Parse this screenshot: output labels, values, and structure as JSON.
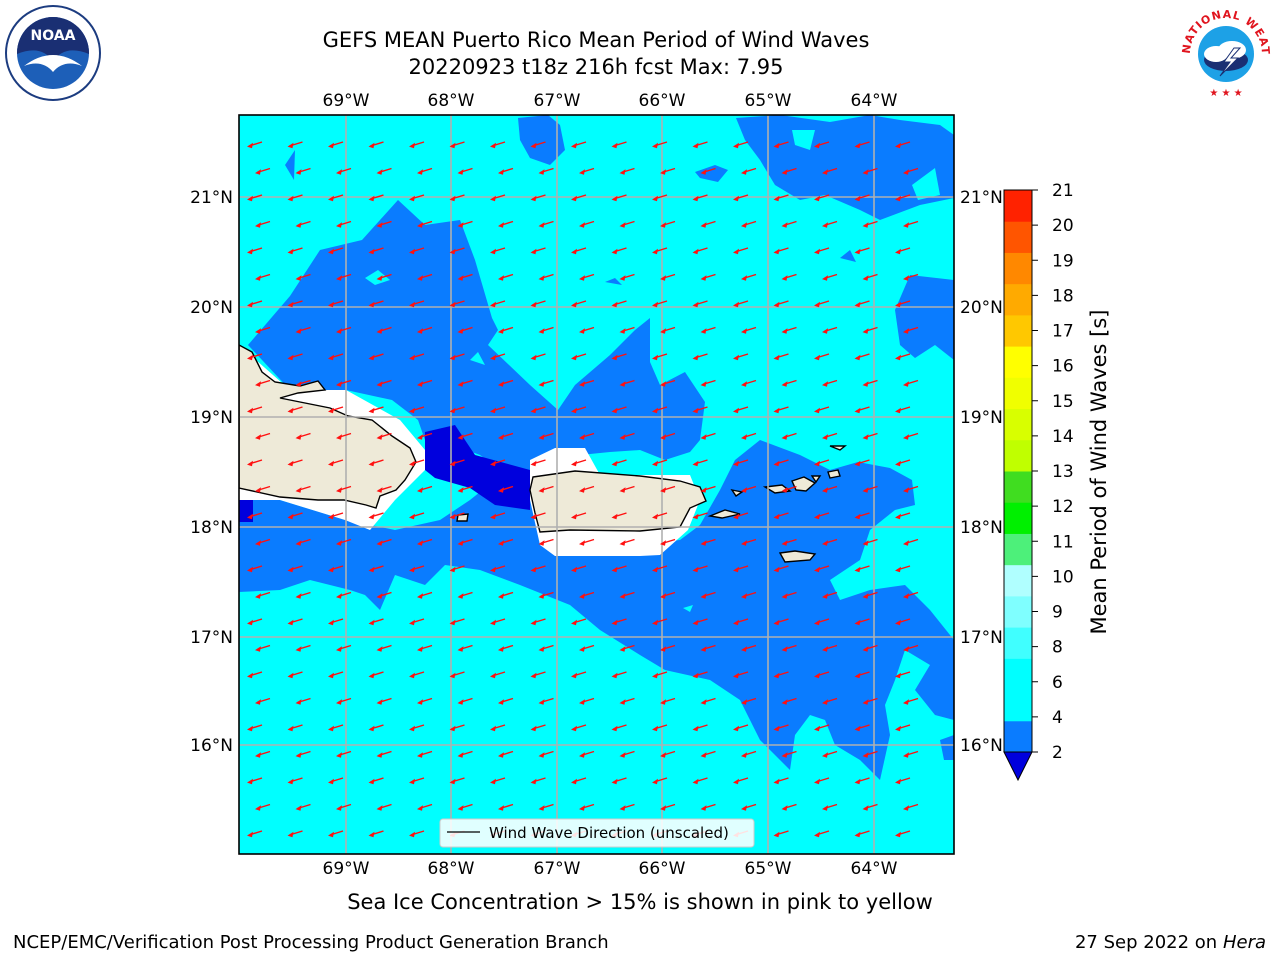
{
  "title": {
    "line1": "GEFS MEAN Puerto Rico Mean Period of Wind Waves",
    "line2": "20220923 t18z 216h fcst   Max: 7.95"
  },
  "subtitle": "Sea Ice Concentration > 15% is shown in pink to yellow",
  "footer": {
    "left": "NCEP/EMC/Verification Post Processing Product Generation Branch",
    "right_date": "27 Sep 2022 on",
    "right_host": "Hera"
  },
  "logos": {
    "left": "NOAA",
    "right": "NATIONAL WEATHER SERVICE"
  },
  "map": {
    "lon_labels": [
      "69°W",
      "68°W",
      "67°W",
      "66°W",
      "65°W",
      "64°W"
    ],
    "lat_labels": [
      "21°N",
      "20°N",
      "19°N",
      "18°N",
      "17°N",
      "16°N"
    ],
    "legend": "Wind Wave Direction (unscaled)",
    "colors": {
      "ocean_light": "#00ffff",
      "ocean_mid": "#0a7cff",
      "ocean_dark": "#0000dd",
      "land": "#eeead8",
      "arrow": "#ff1010",
      "grid": "#b0b0b0"
    }
  },
  "colorbar": {
    "label": "Mean Period of Wind Waves [s]",
    "ticks": [
      "2",
      "4",
      "6",
      "8",
      "9",
      "10",
      "11",
      "12",
      "13",
      "14",
      "15",
      "16",
      "17",
      "18",
      "19",
      "20",
      "21"
    ],
    "bins": [
      {
        "from": 2,
        "to": 4,
        "color": "#0a7cff"
      },
      {
        "from": 4,
        "to": 5,
        "color": "#00ffff"
      },
      {
        "from": 5,
        "to": 6,
        "color": "#00ffff"
      },
      {
        "from": 6,
        "to": 7,
        "color": "#40ffff"
      },
      {
        "from": 7,
        "to": 8,
        "color": "#7fffff"
      },
      {
        "from": 8,
        "to": 9,
        "color": "#b0ffff"
      },
      {
        "from": 9,
        "to": 10,
        "color": "#4df07a"
      },
      {
        "from": 10,
        "to": 11,
        "color": "#00f000"
      },
      {
        "from": 11,
        "to": 12,
        "color": "#40dd20"
      },
      {
        "from": 12,
        "to": 13,
        "color": "#c0ff00"
      },
      {
        "from": 13,
        "to": 14,
        "color": "#d8ff00"
      },
      {
        "from": 14,
        "to": 15,
        "color": "#f0ff00"
      },
      {
        "from": 15,
        "to": 16,
        "color": "#ffff00"
      },
      {
        "from": 16,
        "to": 17,
        "color": "#ffc800"
      },
      {
        "from": 17,
        "to": 18,
        "color": "#ffaa00"
      },
      {
        "from": 18,
        "to": 19,
        "color": "#ff8800"
      },
      {
        "from": 19,
        "to": 20,
        "color": "#ff5500"
      },
      {
        "from": 20,
        "to": 21,
        "color": "#ff2200"
      }
    ],
    "under_color": "#0000dd"
  }
}
